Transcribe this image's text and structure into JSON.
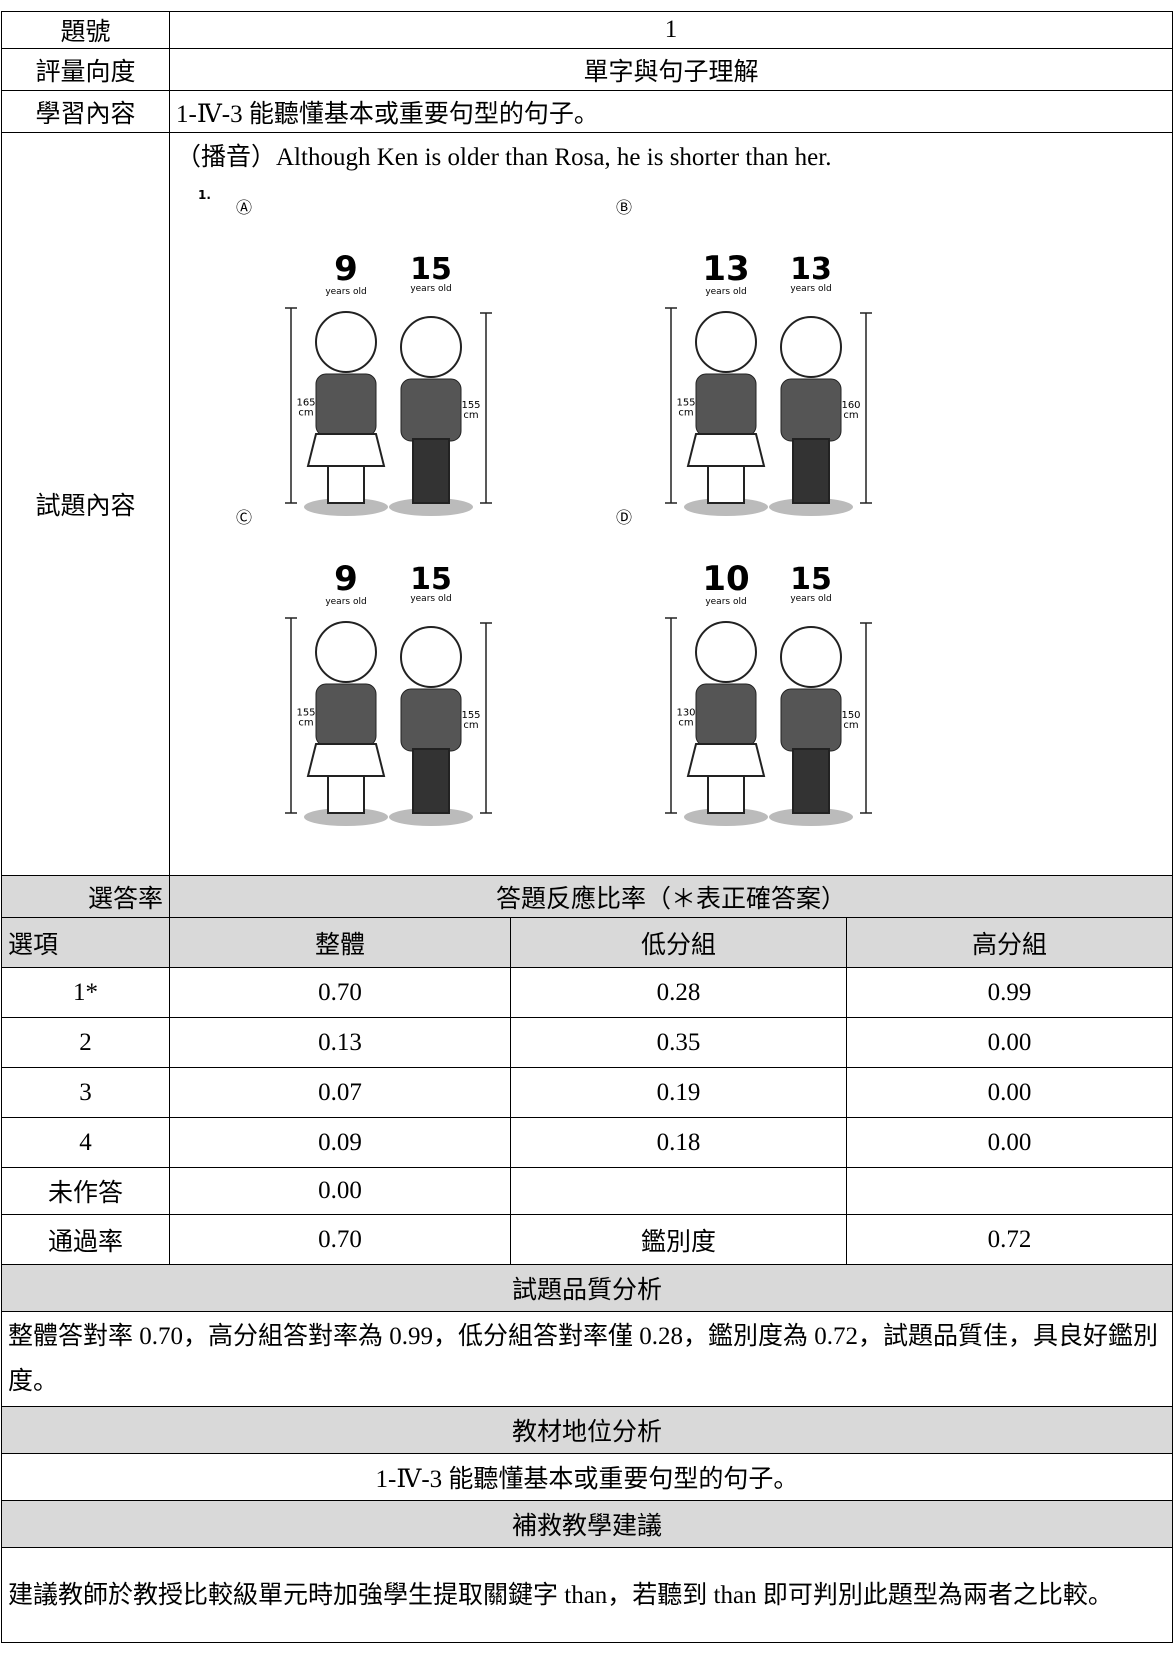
{
  "header": {
    "item_label": "題號",
    "item": "1",
    "dimension_label": "評量向度",
    "dimension": "單字與句子理解",
    "content_label": "學習內容",
    "content": "1-Ⅳ-3 能聽懂基本或重要句型的句子。",
    "question_label": "試題內容",
    "question": "（播音）Although Ken is older than Rosa, he is shorter than her."
  },
  "figure": {
    "number": "1.",
    "age_unit": "years old",
    "height_unit": "cm",
    "options": [
      {
        "letter": "Ⓐ",
        "girl_age": "9",
        "boy_age": "15",
        "girl_height": "165",
        "boy_height": "155"
      },
      {
        "letter": "Ⓑ",
        "girl_age": "13",
        "boy_age": "13",
        "girl_height": "155",
        "boy_height": "160"
      },
      {
        "letter": "Ⓒ",
        "girl_age": "9",
        "boy_age": "15",
        "girl_height": "155",
        "boy_height": "155"
      },
      {
        "letter": "Ⓓ",
        "girl_age": "10",
        "boy_age": "15",
        "girl_height": "130",
        "boy_height": "150"
      }
    ]
  },
  "stats": {
    "rate_label": "選答率",
    "response_title": "答題反應比率（＊表正確答案）",
    "columns": [
      "選項",
      "整體",
      "低分組",
      "高分組"
    ],
    "rows": [
      [
        "1*",
        "0.70",
        "0.28",
        "0.99"
      ],
      [
        "2",
        "0.13",
        "0.35",
        "0.00"
      ],
      [
        "3",
        "0.07",
        "0.19",
        "0.00"
      ],
      [
        "4",
        "0.09",
        "0.18",
        "0.00"
      ]
    ],
    "unanswered": [
      "未作答",
      "0.00"
    ],
    "pass_label": "通過率",
    "pass": "0.70",
    "discrimination_label": "鑑別度",
    "discrimination": "0.72"
  },
  "quality": {
    "title": "試題品質分析",
    "text": "整體答對率 0.70，高分組答對率為 0.99，低分組答對率僅 0.28，鑑別度為 0.72，試題品質佳，具良好鑑別度。"
  },
  "material": {
    "title": "教材地位分析",
    "text": "1-Ⅳ-3 能聽懂基本或重要句型的句子。"
  },
  "remedial": {
    "title": "補救教學建議",
    "text": "建議教師於教授比較級單元時加強學生提取關鍵字 than，若聽到 than 即可判別此題型為兩者之比較。"
  }
}
